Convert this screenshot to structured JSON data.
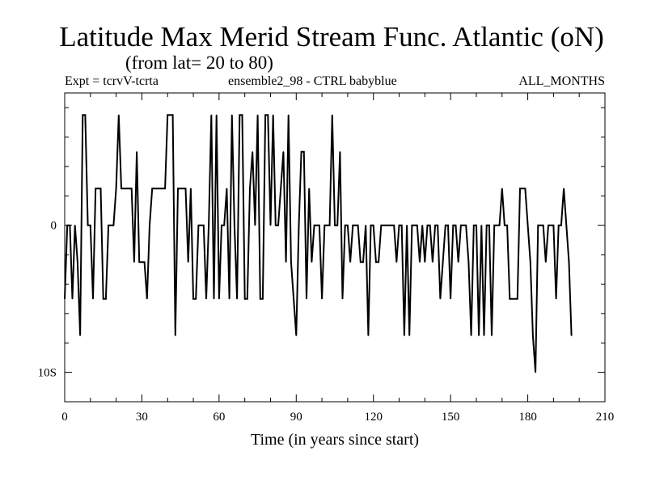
{
  "chart_data": {
    "type": "line",
    "title": "Latitude Max Merid Stream Func. Atlantic (oN)",
    "subtitle": "(from lat= 20 to 80)",
    "header_left": "Expt = tcrvV-tcrta",
    "header_mid": "ensemble2_98 - CTRL babyblue",
    "header_right": "ALL_MONTHS",
    "xlabel": "Time (in years since start)",
    "ylabel": "",
    "xlim": [
      0,
      210
    ],
    "ylim": [
      -12,
      9
    ],
    "xticks": [
      0,
      30,
      60,
      90,
      120,
      150,
      180,
      210
    ],
    "xtick_labels": [
      "0",
      "30",
      "60",
      "90",
      "120",
      "150",
      "180",
      "210"
    ],
    "yticks": [
      0,
      -10
    ],
    "ytick_labels": [
      "0",
      "10S"
    ],
    "series": [
      {
        "values": [
          [
            0,
            -5
          ],
          [
            1,
            0
          ],
          [
            2,
            0
          ],
          [
            3,
            -5
          ],
          [
            4,
            0
          ],
          [
            5,
            -2.5
          ],
          [
            6,
            -7.5
          ],
          [
            7,
            7.5
          ],
          [
            8,
            7.5
          ],
          [
            9,
            0
          ],
          [
            10,
            0
          ],
          [
            11,
            -5
          ],
          [
            12,
            2.5
          ],
          [
            13,
            2.5
          ],
          [
            14,
            2.5
          ],
          [
            15,
            -5
          ],
          [
            16,
            -5
          ],
          [
            17,
            0
          ],
          [
            18,
            0
          ],
          [
            19,
            0
          ],
          [
            20,
            2.5
          ],
          [
            21,
            7.5
          ],
          [
            22,
            2.5
          ],
          [
            23,
            2.5
          ],
          [
            24,
            2.5
          ],
          [
            25,
            2.5
          ],
          [
            26,
            2.5
          ],
          [
            27,
            -2.5
          ],
          [
            28,
            5
          ],
          [
            29,
            -2.5
          ],
          [
            30,
            -2.5
          ],
          [
            31,
            -2.5
          ],
          [
            32,
            -5
          ],
          [
            33,
            0
          ],
          [
            34,
            2.5
          ],
          [
            35,
            2.5
          ],
          [
            36,
            2.5
          ],
          [
            37,
            2.5
          ],
          [
            38,
            2.5
          ],
          [
            39,
            2.5
          ],
          [
            40,
            7.5
          ],
          [
            41,
            7.5
          ],
          [
            42,
            7.5
          ],
          [
            43,
            -7.5
          ],
          [
            44,
            2.5
          ],
          [
            45,
            2.5
          ],
          [
            46,
            2.5
          ],
          [
            47,
            2.5
          ],
          [
            48,
            -2.5
          ],
          [
            49,
            2.5
          ],
          [
            50,
            -5
          ],
          [
            51,
            -5
          ],
          [
            52,
            0
          ],
          [
            53,
            0
          ],
          [
            54,
            0
          ],
          [
            55,
            -5
          ],
          [
            56,
            0
          ],
          [
            57,
            7.5
          ],
          [
            58,
            -5
          ],
          [
            59,
            7.5
          ],
          [
            60,
            -5
          ],
          [
            61,
            0
          ],
          [
            62,
            0
          ],
          [
            63,
            2.5
          ],
          [
            64,
            -5
          ],
          [
            65,
            7.5
          ],
          [
            66,
            0
          ],
          [
            67,
            -5
          ],
          [
            68,
            7.5
          ],
          [
            69,
            7.5
          ],
          [
            70,
            -5
          ],
          [
            71,
            -5
          ],
          [
            72,
            2.5
          ],
          [
            73,
            5
          ],
          [
            74,
            0
          ],
          [
            75,
            7.5
          ],
          [
            76,
            -5
          ],
          [
            77,
            -5
          ],
          [
            78,
            7.5
          ],
          [
            79,
            7.5
          ],
          [
            80,
            0
          ],
          [
            81,
            7.5
          ],
          [
            82,
            0
          ],
          [
            83,
            0
          ],
          [
            84,
            2.5
          ],
          [
            85,
            5
          ],
          [
            86,
            -2.5
          ],
          [
            87,
            7.5
          ],
          [
            88,
            -2.5
          ],
          [
            89,
            -5
          ],
          [
            90,
            -7.5
          ],
          [
            91,
            0
          ],
          [
            92,
            5
          ],
          [
            93,
            5
          ],
          [
            94,
            -5
          ],
          [
            95,
            2.5
          ],
          [
            96,
            -2.5
          ],
          [
            97,
            0
          ],
          [
            98,
            0
          ],
          [
            99,
            0
          ],
          [
            100,
            -5
          ],
          [
            101,
            0
          ],
          [
            102,
            0
          ],
          [
            103,
            0
          ],
          [
            104,
            7.5
          ],
          [
            105,
            0
          ],
          [
            106,
            0
          ],
          [
            107,
            5
          ],
          [
            108,
            -5
          ],
          [
            109,
            0
          ],
          [
            110,
            0
          ],
          [
            111,
            -2.5
          ],
          [
            112,
            0
          ],
          [
            113,
            0
          ],
          [
            114,
            0
          ],
          [
            115,
            -2.5
          ],
          [
            116,
            -2.5
          ],
          [
            117,
            0
          ],
          [
            118,
            -7.5
          ],
          [
            119,
            0
          ],
          [
            120,
            0
          ],
          [
            121,
            -2.5
          ],
          [
            122,
            -2.5
          ],
          [
            123,
            0
          ],
          [
            124,
            0
          ],
          [
            125,
            0
          ],
          [
            126,
            0
          ],
          [
            127,
            0
          ],
          [
            128,
            0
          ],
          [
            129,
            -2.5
          ],
          [
            130,
            0
          ],
          [
            131,
            0
          ],
          [
            132,
            -7.5
          ],
          [
            133,
            0
          ],
          [
            134,
            -7.5
          ],
          [
            135,
            0
          ],
          [
            136,
            0
          ],
          [
            137,
            0
          ],
          [
            138,
            -2.5
          ],
          [
            139,
            0
          ],
          [
            140,
            -2.5
          ],
          [
            141,
            0
          ],
          [
            142,
            0
          ],
          [
            143,
            -2.5
          ],
          [
            144,
            0
          ],
          [
            145,
            0
          ],
          [
            146,
            -5
          ],
          [
            147,
            -2.5
          ],
          [
            148,
            0
          ],
          [
            149,
            0
          ],
          [
            150,
            -5
          ],
          [
            151,
            0
          ],
          [
            152,
            0
          ],
          [
            153,
            -2.5
          ],
          [
            154,
            0
          ],
          [
            155,
            0
          ],
          [
            156,
            0
          ],
          [
            157,
            -2.5
          ],
          [
            158,
            -7.5
          ],
          [
            159,
            0
          ],
          [
            160,
            0
          ],
          [
            161,
            -7.5
          ],
          [
            162,
            0
          ],
          [
            163,
            -7.5
          ],
          [
            164,
            0
          ],
          [
            165,
            0
          ],
          [
            166,
            -7.5
          ],
          [
            167,
            0
          ],
          [
            168,
            0
          ],
          [
            169,
            0
          ],
          [
            170,
            2.5
          ],
          [
            171,
            0
          ],
          [
            172,
            0
          ],
          [
            173,
            -5
          ],
          [
            174,
            -5
          ],
          [
            175,
            -5
          ],
          [
            176,
            -5
          ],
          [
            177,
            2.5
          ],
          [
            178,
            2.5
          ],
          [
            179,
            2.5
          ],
          [
            180,
            0
          ],
          [
            181,
            -2.5
          ],
          [
            182,
            -7.5
          ],
          [
            183,
            -10
          ],
          [
            184,
            0
          ],
          [
            185,
            0
          ],
          [
            186,
            0
          ],
          [
            187,
            -2.5
          ],
          [
            188,
            0
          ],
          [
            189,
            0
          ],
          [
            190,
            0
          ],
          [
            191,
            -5
          ],
          [
            192,
            0
          ],
          [
            193,
            0
          ],
          [
            194,
            2.5
          ],
          [
            195,
            0
          ],
          [
            196,
            -2.5
          ],
          [
            197,
            -7.5
          ]
        ]
      }
    ]
  }
}
